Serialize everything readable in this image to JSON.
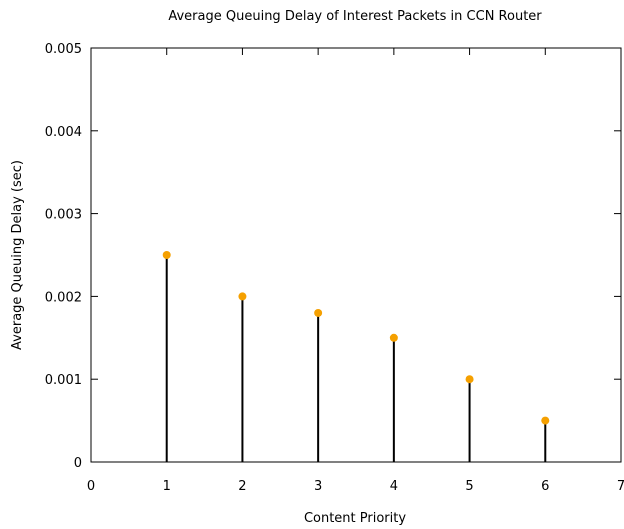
{
  "chart_data": {
    "type": "scatter",
    "style": "impulse",
    "title": "Average Queuing Delay of Interest Packets in CCN Router",
    "xlabel": "Content Priority",
    "ylabel": "Average Queuing Delay (sec)",
    "xlim": [
      0,
      7
    ],
    "ylim": [
      0,
      0.005
    ],
    "x_ticks": [
      "0",
      "1",
      "2",
      "3",
      "4",
      "5",
      "6",
      "7"
    ],
    "y_ticks": [
      "0",
      "0.001",
      "0.002",
      "0.003",
      "0.004",
      "0.005"
    ],
    "x": [
      1,
      2,
      3,
      4,
      5,
      6
    ],
    "values": [
      0.0025,
      0.002,
      0.0018,
      0.0015,
      0.001,
      0.0005
    ],
    "grid": false,
    "colors": {
      "stem": "#000000",
      "marker": "#f5a000",
      "axis": "#000000"
    }
  }
}
